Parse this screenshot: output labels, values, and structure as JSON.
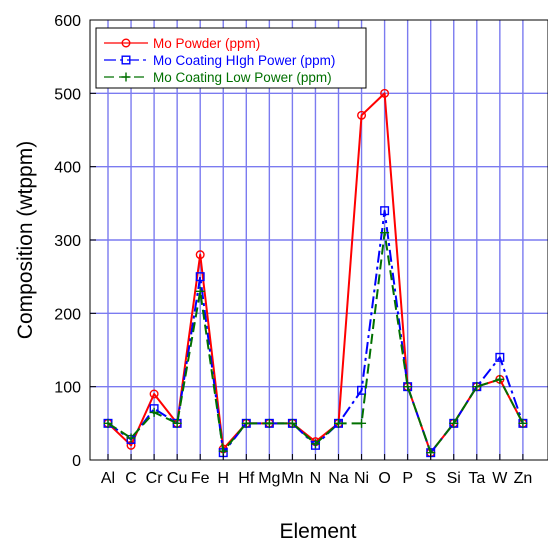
{
  "chart_data": {
    "type": "line",
    "title": "",
    "xlabel": "Element",
    "ylabel": "Composition (wtppm)",
    "ylim": [
      0,
      600
    ],
    "yticks": [
      0,
      100,
      200,
      300,
      400,
      500,
      600
    ],
    "grid": true,
    "legend_position": "top-left",
    "categories": [
      "Al",
      "C",
      "Cr",
      "Cu",
      "Fe",
      "H",
      "Hf",
      "Mg",
      "Mn",
      "N",
      "Na",
      "Ni",
      "O",
      "P",
      "S",
      "Si",
      "Ta",
      "W",
      "Zn"
    ],
    "series": [
      {
        "name": "Mo Powder (ppm)",
        "color": "#ff0000",
        "marker": "circle",
        "line_style": "solid",
        "values": [
          50,
          20,
          90,
          50,
          280,
          15,
          50,
          50,
          50,
          25,
          50,
          470,
          500,
          100,
          10,
          50,
          100,
          110,
          50
        ]
      },
      {
        "name": "Mo Coating HIgh Power (ppm)",
        "color": "#0000ff",
        "marker": "square",
        "line_style": "dash-dot",
        "values": [
          50,
          28,
          70,
          50,
          250,
          10,
          50,
          50,
          50,
          20,
          50,
          95,
          340,
          100,
          10,
          50,
          100,
          140,
          50
        ]
      },
      {
        "name": "Mo Coating Low Power (ppm)",
        "color": "#007000",
        "marker": "plus",
        "line_style": "dashed",
        "values": [
          50,
          30,
          65,
          50,
          230,
          12,
          50,
          50,
          50,
          22,
          50,
          50,
          310,
          100,
          10,
          50,
          100,
          110,
          50
        ]
      }
    ]
  }
}
